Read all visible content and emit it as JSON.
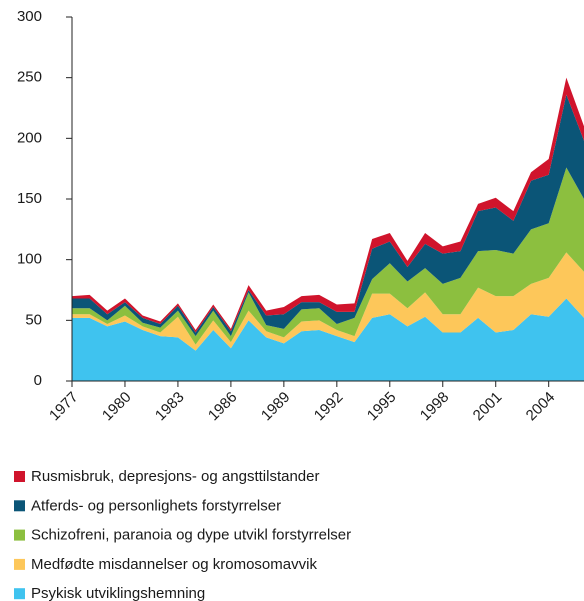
{
  "chart_data": {
    "type": "stacked_area",
    "x": [
      1977,
      1978,
      1979,
      1980,
      1981,
      1982,
      1983,
      1984,
      1985,
      1986,
      1987,
      1988,
      1989,
      1990,
      1991,
      1992,
      1993,
      1994,
      1995,
      1996,
      1997,
      1998,
      1999,
      2000,
      2001,
      2002,
      2003,
      2004,
      2005,
      2006
    ],
    "xlim": [
      1977,
      2006
    ],
    "xticks": [
      1977,
      1980,
      1983,
      1986,
      1989,
      1992,
      1995,
      1998,
      2001,
      2004
    ],
    "ylim": [
      0,
      300
    ],
    "yticks": [
      0,
      50,
      100,
      150,
      200,
      250,
      300
    ],
    "grid": false,
    "series": [
      {
        "name": "Psykisk utviklingshemning",
        "color": "#3fc3ef",
        "values": [
          52,
          52,
          45,
          49,
          42,
          37,
          36,
          25,
          42,
          27,
          50,
          36,
          31,
          41,
          42,
          37,
          32,
          52,
          55,
          45,
          53,
          40,
          40,
          52,
          40,
          42,
          55,
          53,
          68,
          52
        ]
      },
      {
        "name": "Medfødte misdannelser og  kromosomavvik",
        "color": "#fdc75a",
        "values": [
          3,
          3,
          2,
          5,
          3,
          3,
          17,
          5,
          8,
          5,
          8,
          5,
          5,
          8,
          8,
          5,
          5,
          20,
          17,
          15,
          20,
          15,
          15,
          25,
          30,
          28,
          25,
          32,
          38,
          38
        ]
      },
      {
        "name": "Schizofreni, paranoia og dype  utvikl forstyrrelser",
        "color": "#8cbf3f",
        "values": [
          5,
          5,
          3,
          8,
          3,
          4,
          5,
          7,
          8,
          5,
          15,
          5,
          7,
          10,
          10,
          5,
          15,
          12,
          25,
          22,
          20,
          25,
          30,
          30,
          38,
          35,
          45,
          45,
          70,
          60
        ]
      },
      {
        "name": "Atferds- og personlighets forstyrrelser",
        "color": "#0b5577",
        "values": [
          8,
          8,
          5,
          3,
          4,
          3,
          4,
          3,
          3,
          4,
          2,
          8,
          12,
          6,
          5,
          10,
          5,
          25,
          18,
          12,
          20,
          25,
          22,
          33,
          35,
          27,
          40,
          40,
          60,
          48
        ]
      },
      {
        "name": "Rusmisbruk, depresjons- og  angsttilstander",
        "color": "#d0142c",
        "values": [
          2,
          3,
          3,
          3,
          2,
          2,
          2,
          2,
          2,
          2,
          4,
          4,
          6,
          5,
          6,
          6,
          7,
          8,
          7,
          5,
          9,
          6,
          8,
          6,
          8,
          8,
          7,
          13,
          14,
          12
        ]
      }
    ]
  }
}
